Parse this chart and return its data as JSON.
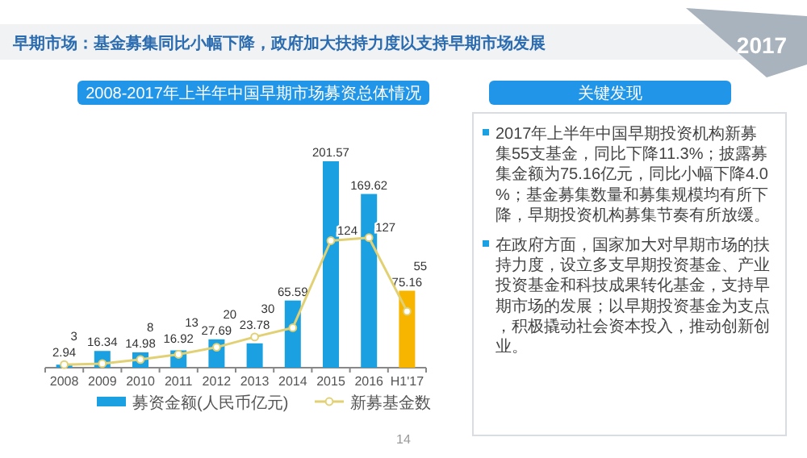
{
  "chart_data": [
    {
      "type": "bar",
      "title": "早期市场：基金募集同比小幅下降，政府加大扶持力度以支持早期市场发展",
      "subtitle": "2008-2017年上半年中国早期市场募资总体情况",
      "categories": [
        "2008",
        "2009",
        "2010",
        "2011",
        "2012",
        "2013",
        "2014",
        "2015",
        "2016",
        "H1'17"
      ],
      "series": [
        {
          "name": "募资金额(人民币亿元)",
          "type": "bar",
          "color": "#1ba1e2",
          "colors": [
            "#1ba1e2",
            "#1ba1e2",
            "#1ba1e2",
            "#1ba1e2",
            "#1ba1e2",
            "#1ba1e2",
            "#1ba1e2",
            "#1ba1e2",
            "#1ba1e2",
            "#f7b500"
          ],
          "values": [
            2.94,
            16.34,
            14.98,
            16.92,
            27.69,
            23.78,
            65.59,
            201.57,
            169.62,
            75.16
          ]
        },
        {
          "name": "新募基金数",
          "type": "line",
          "color": "#e2d174",
          "values": [
            3,
            4,
            8,
            13,
            20,
            30,
            39,
            124,
            127,
            55
          ],
          "value_labels": [
            "3",
            null,
            "8",
            "13",
            "20",
            "30",
            null,
            "124",
            "127",
            "55"
          ]
        }
      ],
      "data_labels": true,
      "marker": "circle",
      "legend": "bottom",
      "annotations": [
        "2017",
        "14"
      ]
    },
    {
      "type": "other",
      "title": "关键发现",
      "annotations": [
        "2017年上半年中国早期投资机构新募集55支基金，同比下降11.3%；披露募集金额为75.16亿元，同比小幅下降4.0%；基金募集数量和募集规模均有所下降，早期投资机构募集节奏有所放缓。",
        "在政府方面，国家加大对早期市场的扶持力度，设立多支早期投资基金、产业投资基金和科技成果转化基金，支持早期市场的发展；以早期投资基金为支点，积极撬动社会资本投入，推动创新创业。"
      ]
    }
  ]
}
